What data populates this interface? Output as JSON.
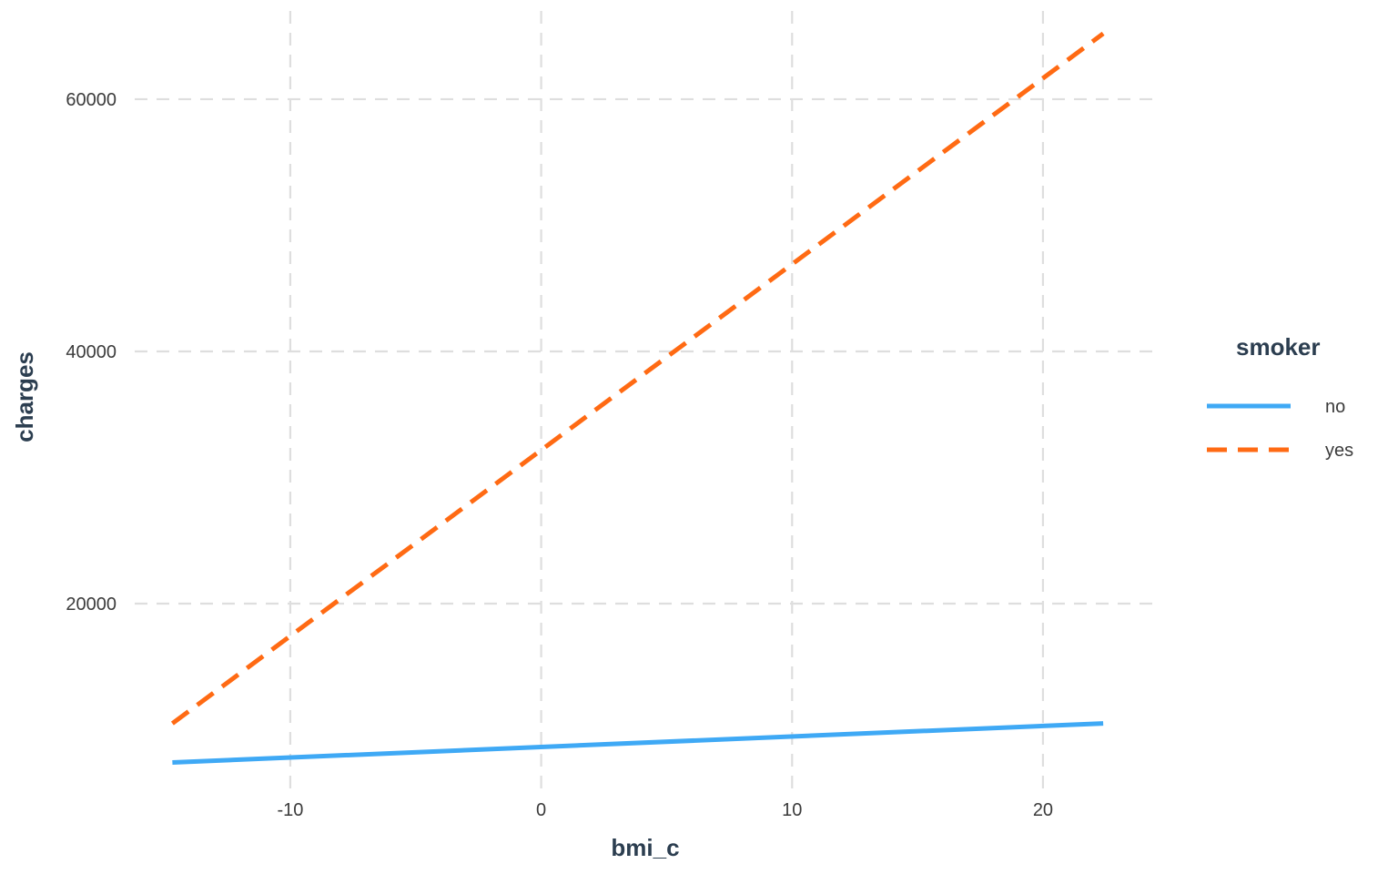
{
  "chart_data": {
    "type": "line",
    "xlabel": "bmi_c",
    "ylabel": "charges",
    "xlim": [
      -16.2,
      24.5
    ],
    "ylim": [
      5200,
      67000
    ],
    "x_ticks": [
      -10,
      0,
      10,
      20
    ],
    "x_tick_labels": [
      "-10",
      "0",
      "10",
      "20"
    ],
    "y_ticks": [
      20000,
      40000,
      60000
    ],
    "y_tick_labels": [
      "20000",
      "40000",
      "60000"
    ],
    "grid": true,
    "legend": {
      "title": "smoker",
      "placement": "right"
    },
    "series": [
      {
        "name": "no",
        "color": "#3fa9f5",
        "line_style": "solid",
        "x": [
          -14.7,
          22.4
        ],
        "y": [
          7400,
          10500
        ]
      },
      {
        "name": "yes",
        "color": "#ff6a13",
        "line_style": "dashed",
        "x": [
          -14.7,
          22.4
        ],
        "y": [
          10500,
          65200
        ]
      }
    ]
  }
}
